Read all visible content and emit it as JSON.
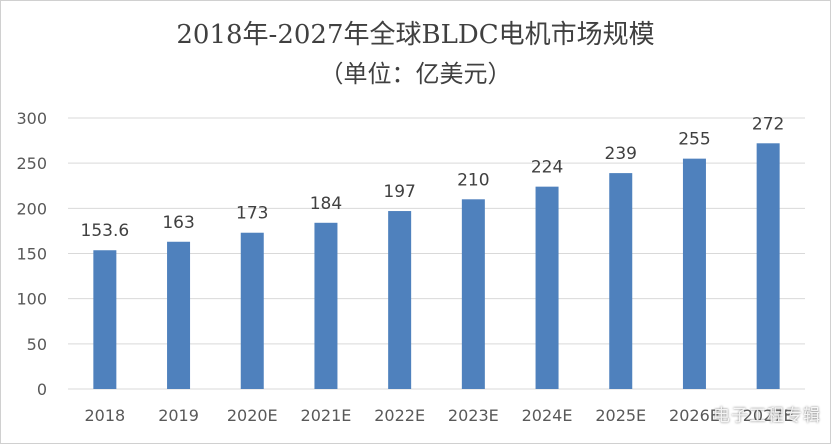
{
  "chart_data": {
    "type": "bar",
    "title": "2018年-2027年全球BLDC电机市场规模",
    "subtitle": "（单位：亿美元）",
    "categories": [
      "2018",
      "2019",
      "2020E",
      "2021E",
      "2022E",
      "2023E",
      "2024E",
      "2025E",
      "2026E",
      "2027E"
    ],
    "values": [
      153.6,
      163,
      173,
      184,
      197,
      210,
      224,
      239,
      255,
      272
    ],
    "ylim": [
      0,
      300
    ],
    "yticks": [
      0,
      50,
      100,
      150,
      200,
      250,
      300
    ],
    "grid": true,
    "bar_color": "#4f81bd"
  },
  "watermark": "电子工程专辑"
}
